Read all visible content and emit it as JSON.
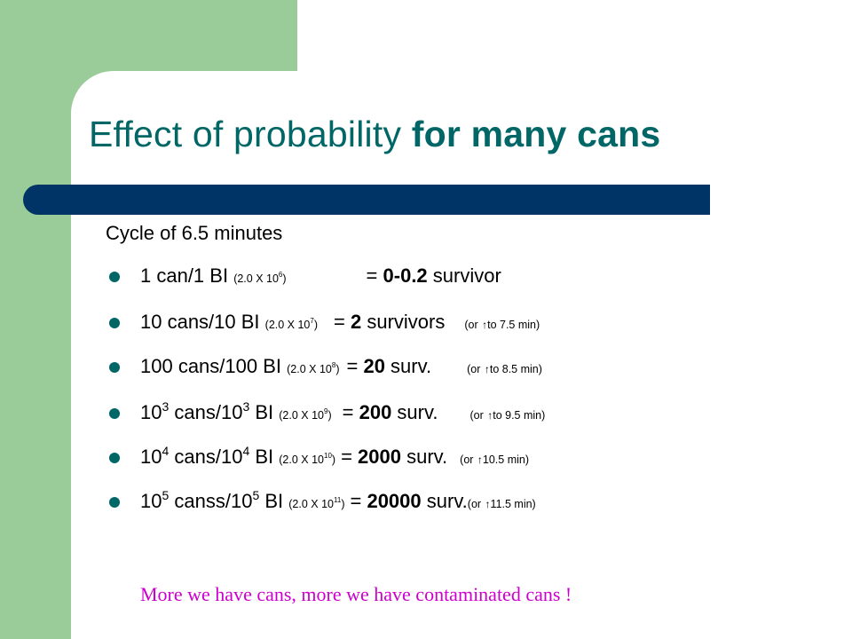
{
  "title": {
    "normal": "Effect of probability ",
    "bold": "for many cans"
  },
  "subtitle": "Cycle of 6.5 minutes",
  "items": [
    {
      "pre": "1 can/1 BI ",
      "bi": "(2.0 X 10",
      "bi_exp": "6",
      "bi_close": ")",
      "eq": "= ",
      "value": "0-0.2",
      "post": " survivor",
      "note": ""
    },
    {
      "pre": "10 cans/10 BI ",
      "bi": "(2.0 X 10",
      "bi_exp": "7",
      "bi_close": ")",
      "eq": "= ",
      "value": "2",
      "post": " survivors",
      "note_pre": "(or ",
      "note_arrow": "🡑",
      "note_post": "to 7.5 min)"
    },
    {
      "pre": "100 cans/100 BI ",
      "bi": "(2.0 X 10",
      "bi_exp": "8",
      "bi_close": ")",
      "eq": "= ",
      "value": "20",
      "post": " surv.",
      "note_pre": "(or ",
      "note_arrow": "🡑",
      "note_post": "to 8.5 min)"
    },
    {
      "pre_a": "10",
      "pre_a_exp": "3",
      "pre_b": " cans/10",
      "pre_b_exp": "3",
      "pre_c": " BI ",
      "bi": "(2.0 X 10",
      "bi_exp": "9",
      "bi_close": ")",
      "eq": "= ",
      "value": "200",
      "post": " surv.",
      "note_pre": "(or ",
      "note_arrow": "🡑",
      "note_post": "to 9.5 min)"
    },
    {
      "pre_a": "10",
      "pre_a_exp": "4",
      "pre_b": " cans/10",
      "pre_b_exp": "4",
      "pre_c": " BI ",
      "bi": "(2.0 X 10",
      "bi_exp": "10",
      "bi_close": ")",
      "eq": "= ",
      "value": "2000",
      "post": " surv.",
      "note_pre": "(or ",
      "note_arrow": "🡑",
      "note_post": "10.5 min)"
    },
    {
      "pre_a": "10",
      "pre_a_exp": "5",
      "pre_b": " canss/10",
      "pre_b_exp": "5",
      "pre_c": " BI ",
      "bi": "(2.0 X 10",
      "bi_exp": "11",
      "bi_close": ")",
      "eq": "= ",
      "value": "20000",
      "post": " surv.",
      "note_pre": "(or ",
      "note_arrow": "🡑",
      "note_post": "11.5 min)"
    }
  ],
  "footer": "More we have cans, more we have contaminated cans !",
  "colors": {
    "green": "#99cc99",
    "title": "#006666",
    "bar": "#003366",
    "bullet": "#006666",
    "footer": "#cc00cc"
  }
}
